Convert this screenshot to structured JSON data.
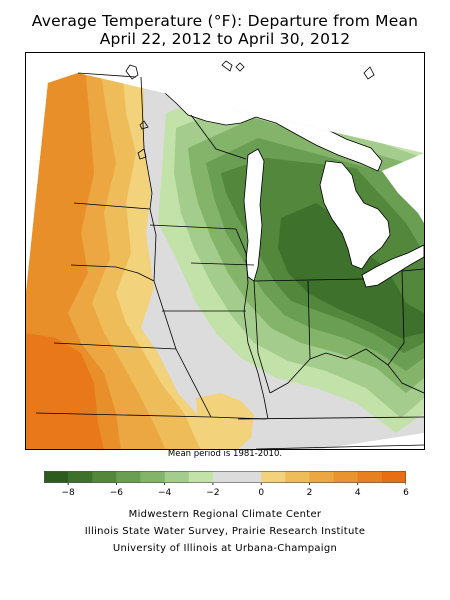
{
  "header": {
    "title_line1": "Average Temperature (°F): Departure from Mean",
    "title_line2": "April 22, 2012 to April 30, 2012"
  },
  "map": {
    "note": "Mean period is 1981-2010."
  },
  "legend": {
    "tick_labels": [
      "−8",
      "−6",
      "−4",
      "−2",
      "0",
      "2",
      "4",
      "6"
    ],
    "tick_values": [
      -8,
      -6,
      -4,
      -2,
      0,
      2,
      4,
      6
    ],
    "range": [
      -9,
      6
    ],
    "colors": [
      "#2d5c1e",
      "#3e722c",
      "#52873c",
      "#6a9e53",
      "#84b46a",
      "#a4cc8c",
      "#c2e2aa",
      "#dcdcdc",
      "#dcdcdc",
      "#f2d27a",
      "#eebc58",
      "#eca642",
      "#ea9430",
      "#e98020",
      "#e86e10"
    ]
  },
  "credits": {
    "line1": "Midwestern Regional Climate Center",
    "line2": "Illinois State Water Survey, Prairie Research Institute",
    "line3": "University of Illinois at Urbana-Champaign"
  },
  "colors": {
    "warm_extreme": "#e9811e",
    "cool_extreme": "#3d6f2b",
    "neutral": "#dcdcdc",
    "water": "#ffffff",
    "boundary": "#000000"
  }
}
